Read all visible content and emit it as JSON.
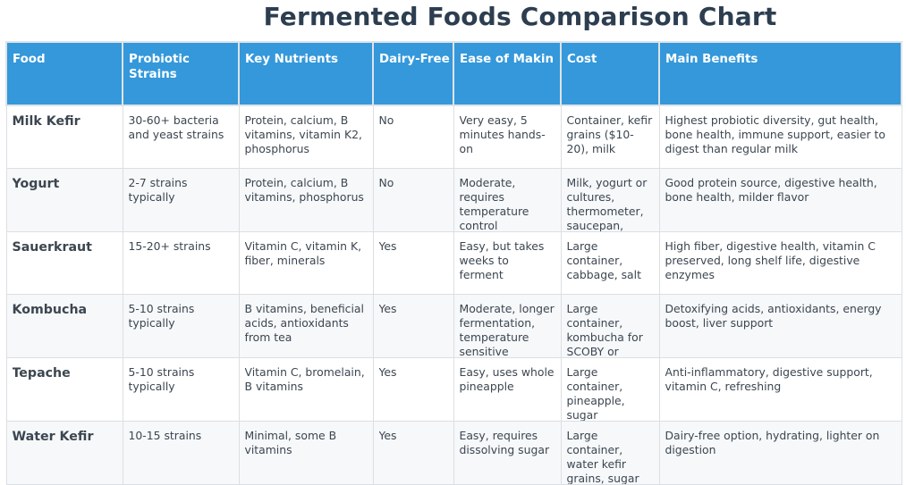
{
  "title": "Fermented Foods Comparison Chart",
  "table": {
    "headers": [
      "Food",
      "Probiotic Strains",
      "Key Nutrients",
      "Dairy-Free",
      "Ease of Making",
      "Cost",
      "Main Benefits"
    ],
    "header_display": [
      "Food",
      "Probiotic Strains",
      "Key Nutrients",
      "Dairy-Free",
      "Ease of Makin",
      "Cost",
      "Main Benefits"
    ],
    "rows": [
      {
        "food": "Milk Kefir",
        "strains": "30-60+ bacteria and yeast strains",
        "nutrients": "Protein, calcium, B vitamins, vitamin K2, phosphorus",
        "dairy_free": "No",
        "ease": "Very easy, 5 minutes hands-on",
        "cost": "Container, kefir grains ($10-20), milk",
        "benefits": "Highest probiotic diversity, gut health, bone health, immune support, easier to digest than regular milk"
      },
      {
        "food": "Yogurt",
        "strains": "2-7 strains typically",
        "nutrients": "Protein, calcium, B vitamins, phosphorus",
        "dairy_free": "No",
        "ease": "Moderate, requires temperature control",
        "cost": "Milk, yogurt or cultures, thermometer, saucepan,",
        "benefits": "Good protein source, digestive health, bone health, milder flavor"
      },
      {
        "food": "Sauerkraut",
        "strains": "15-20+ strains",
        "nutrients": "Vitamin C, vitamin K, fiber, minerals",
        "dairy_free": "Yes",
        "ease": "Easy, but takes weeks to ferment",
        "cost": "Large container, cabbage, salt",
        "benefits": "High fiber, digestive health, vitamin C preserved, long shelf life, digestive enzymes"
      },
      {
        "food": "Kombucha",
        "strains": "5-10 strains typically",
        "nutrients": "B vitamins, beneficial acids, antioxidants from tea",
        "dairy_free": "Yes",
        "ease": "Moderate, longer fermentation, temperature sensitive",
        "cost": "Large container, kombucha for SCOBY or SCOBY tea, sugar",
        "benefits": "Detoxifying acids, antioxidants, energy boost, liver support"
      },
      {
        "food": "Tepache",
        "strains": "5-10 strains typically",
        "nutrients": "Vitamin C, bromelain, B vitamins",
        "dairy_free": "Yes",
        "ease": "Easy, uses whole pineapple",
        "cost": "Large container, pineapple, sugar",
        "benefits": "Anti-inflammatory, digestive support, vitamin C, refreshing"
      },
      {
        "food": "Water Kefir",
        "strains": "10-15 strains",
        "nutrients": "Minimal, some B vitamins",
        "dairy_free": "Yes",
        "ease": "Easy, requires dissolving sugar",
        "cost": "Large container, water kefir grains, sugar",
        "benefits": "Dairy-free option, hydrating, lighter on digestion"
      }
    ]
  },
  "colors": {
    "header_bg": "#3498db",
    "title": "#2c3e50",
    "row_alt": "#f6f8fa"
  }
}
